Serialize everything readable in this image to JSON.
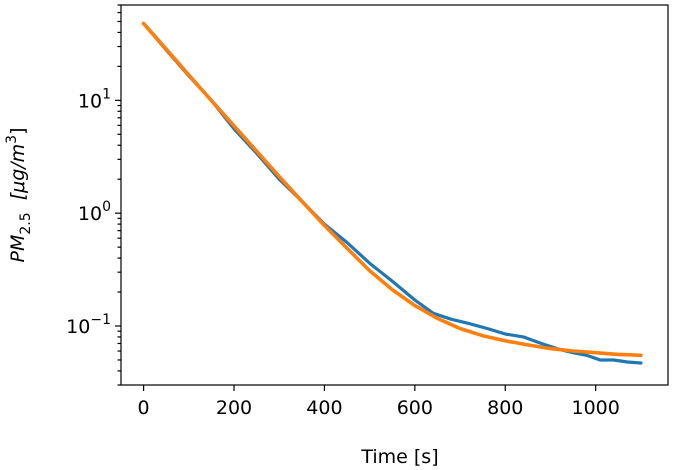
{
  "chart_data": {
    "type": "line",
    "xlabel": "Time [s]",
    "ylabel": {
      "main": "PM",
      "subscript": "2.5",
      "unit_open": "  [μg/m",
      "unit_superscript": "3",
      "unit_close": "]"
    },
    "xlim": [
      -50,
      1160
    ],
    "ylim": [
      0.03,
      70
    ],
    "yscale": "log",
    "grid": false,
    "legend": "none",
    "x_ticks": [
      {
        "value": 0,
        "label": "0"
      },
      {
        "value": 200,
        "label": "200"
      },
      {
        "value": 400,
        "label": "400"
      },
      {
        "value": 600,
        "label": "600"
      },
      {
        "value": 800,
        "label": "800"
      },
      {
        "value": 1000,
        "label": "1000"
      }
    ],
    "y_ticks": [
      {
        "value": 0.1,
        "base": "10",
        "exponent": "−1"
      },
      {
        "value": 1,
        "base": "10",
        "exponent": "0"
      },
      {
        "value": 10,
        "base": "10",
        "exponent": "1"
      }
    ],
    "series": [
      {
        "color": "#1f77b4",
        "x": [
          0,
          50,
          100,
          150,
          200,
          250,
          300,
          350,
          400,
          450,
          500,
          550,
          600,
          640,
          680,
          720,
          760,
          800,
          840,
          880,
          920,
          950,
          980,
          1010,
          1040,
          1070,
          1100
        ],
        "y": [
          48,
          28,
          16.5,
          10,
          5.6,
          3.4,
          2.0,
          1.28,
          0.8,
          0.55,
          0.36,
          0.25,
          0.17,
          0.13,
          0.115,
          0.105,
          0.095,
          0.085,
          0.08,
          0.07,
          0.062,
          0.058,
          0.055,
          0.05,
          0.05,
          0.048,
          0.047
        ]
      },
      {
        "color": "#ff7f0e",
        "x": [
          0,
          50,
          100,
          150,
          200,
          250,
          300,
          350,
          400,
          450,
          500,
          550,
          600,
          650,
          700,
          750,
          800,
          850,
          900,
          950,
          1000,
          1050,
          1100
        ],
        "y": [
          48,
          28.5,
          16.8,
          10.0,
          5.95,
          3.55,
          2.12,
          1.28,
          0.78,
          0.49,
          0.31,
          0.21,
          0.152,
          0.117,
          0.095,
          0.082,
          0.074,
          0.068,
          0.063,
          0.06,
          0.058,
          0.056,
          0.055
        ]
      }
    ]
  }
}
